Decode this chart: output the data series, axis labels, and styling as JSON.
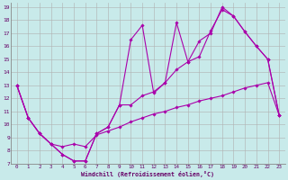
{
  "xlabel": "Windchill (Refroidissement éolien,°C)",
  "bg_color": "#c8eaea",
  "grid_color": "#b0b0b0",
  "line_color": "#aa00aa",
  "xlim": [
    -0.5,
    23.5
  ],
  "ylim": [
    7,
    19.3
  ],
  "xticks": [
    0,
    1,
    2,
    3,
    4,
    5,
    6,
    7,
    8,
    9,
    10,
    11,
    12,
    13,
    14,
    15,
    16,
    17,
    18,
    19,
    20,
    21,
    22,
    23
  ],
  "yticks": [
    7,
    8,
    9,
    10,
    11,
    12,
    13,
    14,
    15,
    16,
    17,
    18,
    19
  ],
  "line1_x": [
    0,
    1,
    2,
    3,
    4,
    5,
    6,
    7,
    8,
    9,
    10,
    11,
    12,
    13,
    14,
    15,
    16,
    17,
    18,
    19,
    20,
    21,
    22,
    23
  ],
  "line1_y": [
    13,
    10.5,
    9.3,
    8.5,
    8.3,
    8.5,
    8.3,
    9.2,
    9.5,
    9.8,
    10.2,
    10.5,
    10.8,
    11.0,
    11.3,
    11.5,
    11.8,
    12.0,
    12.2,
    12.5,
    12.8,
    13.0,
    13.2,
    10.7
  ],
  "line2_x": [
    0,
    1,
    2,
    3,
    4,
    5,
    6,
    7,
    8,
    9,
    10,
    11,
    12,
    13,
    14,
    15,
    16,
    17,
    18,
    19,
    20,
    21,
    22,
    23
  ],
  "line2_y": [
    13,
    10.5,
    9.3,
    8.5,
    7.7,
    7.2,
    7.2,
    9.3,
    9.8,
    11.5,
    11.5,
    12.2,
    12.5,
    13.2,
    14.2,
    14.8,
    15.2,
    17.2,
    18.8,
    18.3,
    17.1,
    16.0,
    15.0,
    10.7
  ],
  "line3_x": [
    0,
    1,
    2,
    3,
    4,
    5,
    6,
    7,
    8,
    9,
    10,
    11,
    12,
    13,
    14,
    15,
    16,
    17,
    18,
    19,
    20,
    21,
    22,
    23
  ],
  "line3_y": [
    13,
    10.5,
    9.3,
    8.5,
    7.7,
    7.2,
    7.2,
    9.3,
    9.8,
    11.5,
    16.5,
    17.6,
    12.4,
    13.2,
    17.8,
    14.8,
    16.4,
    17.0,
    19.0,
    18.3,
    17.1,
    16.0,
    15.0,
    10.7
  ]
}
